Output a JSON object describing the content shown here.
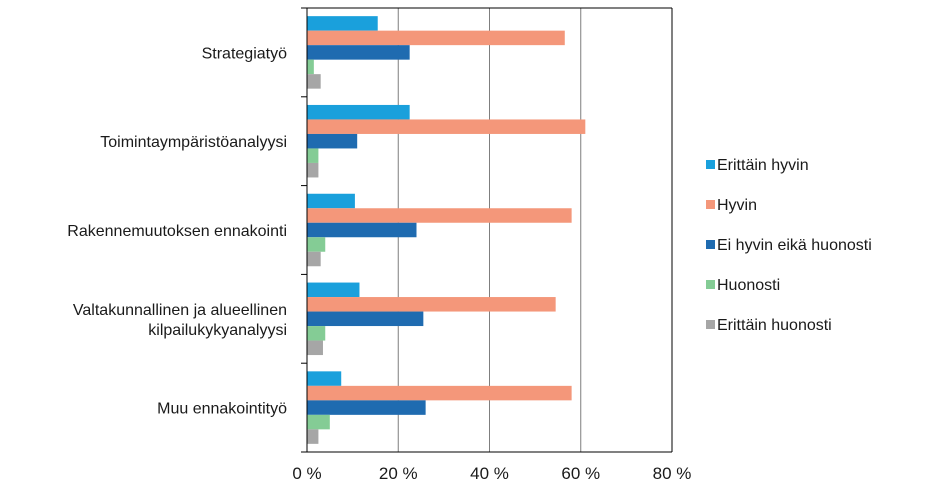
{
  "chart_data": {
    "type": "bar",
    "orientation": "horizontal",
    "categories": [
      [
        "Strategiatyö"
      ],
      [
        "Toimintaympäristöanalyysi"
      ],
      [
        "Rakennemuutoksen ennakointi"
      ],
      [
        "Valtakunnallinen ja alueellinen",
        "kilpailukykyanalyysi"
      ],
      [
        "Muu ennakointityö"
      ]
    ],
    "series": [
      {
        "name": "Erittäin hyvin",
        "color": "#1aa0dc",
        "values": [
          15.5,
          22.5,
          10.5,
          11.5,
          7.5
        ]
      },
      {
        "name": "Hyvin",
        "color": "#f4977a",
        "values": [
          56.5,
          61.0,
          58.0,
          54.5,
          58.0
        ]
      },
      {
        "name": "Ei hyvin eikä huonosti",
        "color": "#1f6bb0",
        "values": [
          22.5,
          11.0,
          24.0,
          25.5,
          26.0
        ]
      },
      {
        "name": "Huonosti",
        "color": "#84cc95",
        "values": [
          1.5,
          2.5,
          4.0,
          4.0,
          5.0
        ]
      },
      {
        "name": "Erittäin huonosti",
        "color": "#a6a6a6",
        "values": [
          3.0,
          2.5,
          3.0,
          3.5,
          2.5
        ]
      }
    ],
    "xlim": [
      0,
      80
    ],
    "xticks": [
      0,
      20,
      40,
      60,
      80
    ],
    "xtick_labels": [
      "0 %",
      "20 %",
      "40 %",
      "60 %",
      "80 %"
    ],
    "grid": true,
    "legend_position": "right"
  }
}
